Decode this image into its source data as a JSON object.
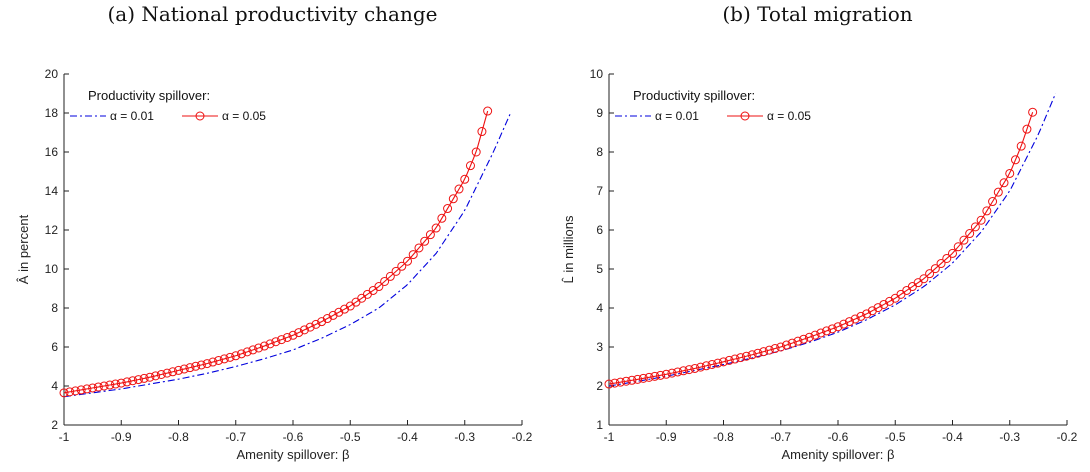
{
  "colors": {
    "series_a": "#0000dd",
    "series_b": "#ee1111",
    "axis": "#222222"
  },
  "chart_data": [
    {
      "type": "line",
      "panel_title": "(a) National productivity change",
      "xlabel": "Amenity spillover: β",
      "ylabel": "Â in percent",
      "xlim": [
        -1,
        -0.2
      ],
      "ylim": [
        2,
        20
      ],
      "xticks": [
        -1,
        -0.9,
        -0.8,
        -0.7,
        -0.6,
        -0.5,
        -0.4,
        -0.3,
        -0.2
      ],
      "xtick_labels": [
        "-1",
        "-0.9",
        "-0.8",
        "-0.7",
        "-0.6",
        "-0.5",
        "-0.4",
        "-0.3",
        "-0.2"
      ],
      "yticks": [
        2,
        4,
        6,
        8,
        10,
        12,
        14,
        16,
        18,
        20
      ],
      "ytick_labels": [
        "2",
        "4",
        "6",
        "8",
        "10",
        "12",
        "14",
        "16",
        "18",
        "20"
      ],
      "grid": false,
      "legend": {
        "title": "Productivity spillover:",
        "placement": "top-left",
        "entries": [
          "α = 0.01",
          "α = 0.05"
        ]
      },
      "series": [
        {
          "name": "α = 0.01",
          "style": "dash-dot",
          "marker": "none",
          "x": [
            -1.0,
            -0.95,
            -0.9,
            -0.85,
            -0.8,
            -0.75,
            -0.7,
            -0.65,
            -0.6,
            -0.55,
            -0.5,
            -0.45,
            -0.4,
            -0.35,
            -0.3,
            -0.25,
            -0.22
          ],
          "y": [
            3.45,
            3.65,
            3.85,
            4.1,
            4.35,
            4.65,
            5.0,
            5.4,
            5.85,
            6.45,
            7.15,
            8.0,
            9.2,
            10.8,
            13.0,
            16.0,
            18.0
          ]
        },
        {
          "name": "α = 0.05",
          "style": "solid",
          "marker": "circle",
          "x": [
            -1.0,
            -0.95,
            -0.9,
            -0.85,
            -0.8,
            -0.75,
            -0.7,
            -0.65,
            -0.6,
            -0.55,
            -0.5,
            -0.45,
            -0.4,
            -0.35,
            -0.3,
            -0.28,
            -0.26
          ],
          "y": [
            3.65,
            3.9,
            4.15,
            4.45,
            4.8,
            5.15,
            5.55,
            6.05,
            6.6,
            7.3,
            8.1,
            9.1,
            10.4,
            12.1,
            14.6,
            16.0,
            18.1
          ]
        }
      ]
    },
    {
      "type": "line",
      "panel_title": "(b) Total migration",
      "xlabel": "Amenity spillover: β",
      "ylabel": "L̂ in millions",
      "xlim": [
        -1,
        -0.2
      ],
      "ylim": [
        1,
        10
      ],
      "xticks": [
        -1,
        -0.9,
        -0.8,
        -0.7,
        -0.6,
        -0.5,
        -0.4,
        -0.3,
        -0.2
      ],
      "xtick_labels": [
        "-1",
        "-0.9",
        "-0.8",
        "-0.7",
        "-0.6",
        "-0.5",
        "-0.4",
        "-0.3",
        "-0.2"
      ],
      "yticks": [
        1,
        2,
        3,
        4,
        5,
        6,
        7,
        8,
        9,
        10
      ],
      "ytick_labels": [
        "1",
        "2",
        "3",
        "4",
        "5",
        "6",
        "7",
        "8",
        "9",
        "10"
      ],
      "grid": false,
      "legend": {
        "title": "Productivity spillover:",
        "placement": "top-left",
        "entries": [
          "α = 0.01",
          "α = 0.05"
        ]
      },
      "series": [
        {
          "name": "α = 0.01",
          "style": "dash-dot",
          "marker": "none",
          "x": [
            -1.0,
            -0.95,
            -0.9,
            -0.85,
            -0.8,
            -0.75,
            -0.7,
            -0.65,
            -0.6,
            -0.55,
            -0.5,
            -0.45,
            -0.4,
            -0.35,
            -0.3,
            -0.25,
            -0.22
          ],
          "y": [
            2.0,
            2.12,
            2.25,
            2.4,
            2.55,
            2.72,
            2.9,
            3.12,
            3.38,
            3.7,
            4.08,
            4.55,
            5.15,
            5.95,
            7.0,
            8.45,
            9.5
          ]
        },
        {
          "name": "α = 0.05",
          "style": "solid",
          "marker": "circle",
          "x": [
            -1.0,
            -0.95,
            -0.9,
            -0.85,
            -0.8,
            -0.75,
            -0.7,
            -0.65,
            -0.6,
            -0.55,
            -0.5,
            -0.45,
            -0.4,
            -0.35,
            -0.3,
            -0.28,
            -0.26
          ],
          "y": [
            2.05,
            2.17,
            2.3,
            2.45,
            2.62,
            2.8,
            3.0,
            3.25,
            3.52,
            3.85,
            4.25,
            4.75,
            5.4,
            6.25,
            7.45,
            8.15,
            9.02
          ]
        }
      ]
    }
  ]
}
